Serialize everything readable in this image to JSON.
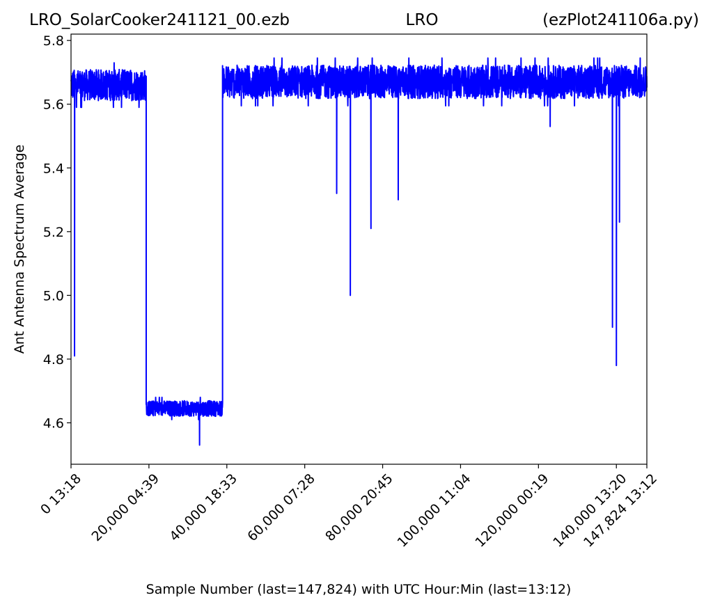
{
  "chart_data": {
    "type": "line",
    "title_left": "LRO_SolarCooker241121_00.ezb",
    "title_center": "LRO",
    "title_right": "(ezPlot241106a.py)",
    "xlabel": "Sample Number (last=147,824) with UTC Hour:Min (last=13:12)",
    "ylabel": "Ant Antenna Spectrum Average",
    "xlim": [
      0,
      147824
    ],
    "ylim": [
      4.47,
      5.82
    ],
    "grid": false,
    "line_color": "#0000ff",
    "x_ticks": [
      {
        "value": 0,
        "label": "0  13:18"
      },
      {
        "value": 20000,
        "label": "20,000  04:39"
      },
      {
        "value": 40000,
        "label": "40,000  18:33"
      },
      {
        "value": 60000,
        "label": "60,000  07:28"
      },
      {
        "value": 80000,
        "label": "80,000  20:45"
      },
      {
        "value": 100000,
        "label": "100,000  11:04"
      },
      {
        "value": 120000,
        "label": "120,000  00:19"
      },
      {
        "value": 140000,
        "label": "140,000  13:20"
      },
      {
        "value": 147824,
        "label": "147,824  13:12"
      }
    ],
    "y_ticks": [
      {
        "value": 4.6,
        "label": "4.6"
      },
      {
        "value": 4.8,
        "label": "4.8"
      },
      {
        "value": 5.0,
        "label": "5.0"
      },
      {
        "value": 5.2,
        "label": "5.2"
      },
      {
        "value": 5.4,
        "label": "5.4"
      },
      {
        "value": 5.6,
        "label": "5.6"
      },
      {
        "value": 5.8,
        "label": "5.8"
      }
    ],
    "series": [
      {
        "levels": [
          {
            "x_start": 0,
            "x_end": 19300,
            "mean": 5.66,
            "min": 5.59,
            "max": 5.73
          },
          {
            "x_start": 19300,
            "x_end": 38900,
            "mean": 4.645,
            "min": 4.61,
            "max": 4.68
          },
          {
            "x_start": 38900,
            "x_end": 147824,
            "mean": 5.67,
            "min": 5.6,
            "max": 5.75
          }
        ],
        "dips": [
          {
            "x": 900,
            "y": 4.81
          },
          {
            "x": 33000,
            "y": 4.53
          },
          {
            "x": 68200,
            "y": 5.32
          },
          {
            "x": 71700,
            "y": 5.0
          },
          {
            "x": 77000,
            "y": 5.21
          },
          {
            "x": 84000,
            "y": 5.3
          },
          {
            "x": 123000,
            "y": 5.53
          },
          {
            "x": 139000,
            "y": 4.9
          },
          {
            "x": 140000,
            "y": 4.78
          },
          {
            "x": 140800,
            "y": 5.23
          }
        ]
      }
    ]
  }
}
